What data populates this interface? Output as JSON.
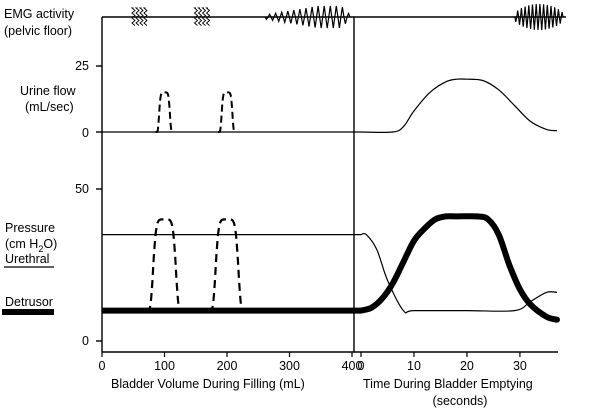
{
  "labels": {
    "emg_line1": "EMG activity",
    "emg_line2": "(pelvic floor)",
    "flow_line1": "Urine flow",
    "flow_line2": "(mL/sec)",
    "pressure_line1": "Pressure",
    "pressure_line2_pre": "(cm H",
    "pressure_line2_sub": "2",
    "pressure_line2_post": "O)",
    "urethral": "Urethral",
    "detrusor": "Detrusor",
    "flow_tick_top": "25",
    "flow_tick_bottom": "0",
    "pressure_tick_top": "50",
    "pressure_tick_bottom": "0"
  },
  "chart_data": {
    "type": "line",
    "panels": [
      {
        "name": "filling",
        "xlabel": "Bladder Volume During Filling (mL)",
        "xlim": [
          0,
          400
        ],
        "x_ticks": [
          "0",
          "100",
          "200",
          "300",
          "400"
        ],
        "flow_y_lim": [
          0,
          25
        ],
        "pressure_y_lim": [
          0,
          50
        ],
        "emg": {
          "baseline": "flat",
          "bursts": [
            {
              "x_center": 60,
              "width": 18,
              "kind": "spikes"
            },
            {
              "x_center": 160,
              "width": 18,
              "kind": "spikes"
            },
            {
              "x_start": 280,
              "x_end": 400,
              "kind": "increasing-oscillation"
            }
          ]
        },
        "urine_flow": [
          {
            "x_center": 100,
            "peak": 15,
            "style": "dashed"
          },
          {
            "x_center": 200,
            "peak": 15,
            "style": "dashed"
          }
        ],
        "urethral_pressure": {
          "baseline": 35
        },
        "detrusor_pressure": {
          "baseline": 10,
          "dashed_peaks": [
            {
              "x_center": 100,
              "peak": 40
            },
            {
              "x_center": 200,
              "peak": 40
            }
          ]
        }
      },
      {
        "name": "emptying",
        "xlabel": "Time During Bladder Emptying (seconds)",
        "xlim": [
          0,
          37
        ],
        "x_ticks": [
          "0",
          "10",
          "20",
          "30"
        ],
        "emg": {
          "baseline": "flat",
          "bursts": [
            {
              "x_start": 30,
              "x_end": 37,
              "kind": "oscillation"
            }
          ]
        },
        "urine_flow": {
          "x": [
            0,
            6,
            8,
            10,
            13,
            16,
            18,
            20,
            23,
            26,
            29,
            32,
            35,
            37
          ],
          "y": [
            0,
            0,
            2,
            8,
            15,
            19,
            20,
            20,
            19.5,
            16,
            10,
            4,
            1,
            0.5
          ]
        },
        "urethral_pressure": {
          "x": [
            0,
            1,
            3,
            5,
            8,
            10,
            20,
            29,
            32,
            35,
            37
          ],
          "y": [
            35,
            35,
            30,
            20,
            10,
            10,
            10,
            10,
            13,
            16,
            16
          ]
        },
        "detrusor_pressure": {
          "x": [
            0,
            2,
            4,
            6,
            8,
            10,
            12,
            14,
            16,
            18,
            22,
            24,
            26,
            28,
            30,
            32,
            35,
            37
          ],
          "y": [
            10,
            11,
            14,
            19,
            26,
            33,
            37,
            40,
            41,
            41,
            41,
            40,
            35,
            25,
            17,
            12,
            8,
            7
          ]
        }
      }
    ]
  }
}
